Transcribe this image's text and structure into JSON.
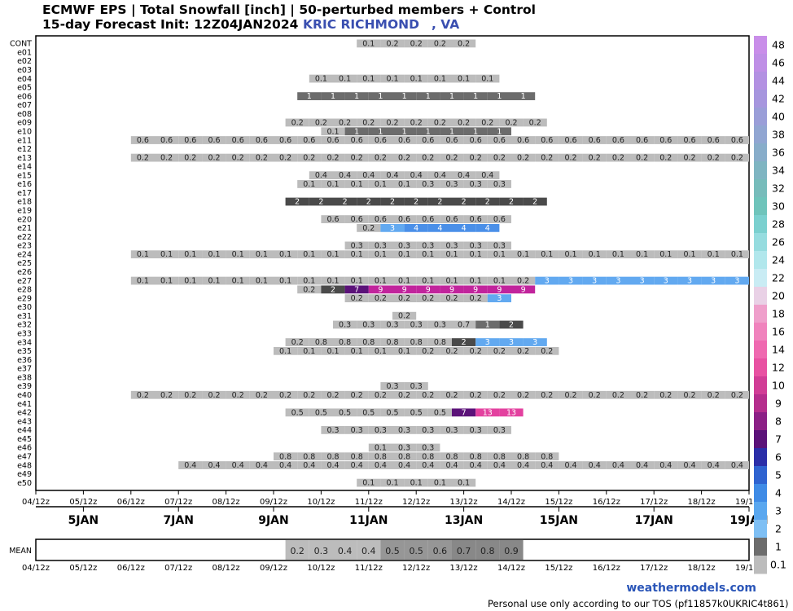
{
  "header": {
    "title_line1": "ECMWF EPS | Total Snowfall [inch] | 50-perturbed members + Control",
    "title_line2": "15-day Forecast Init: 12Z04JAN2024",
    "location": "KRIC RICHMOND",
    "location_state": ", VA"
  },
  "footer": {
    "brand": "weathermodels.com",
    "tos": "Personal use only according to our TOS (pf11857k0UKRIC4t861)"
  },
  "chart_data": {
    "type": "heatmap",
    "members": [
      "CONT",
      "e01",
      "e02",
      "e03",
      "e04",
      "e05",
      "e06",
      "e07",
      "e08",
      "e09",
      "e10",
      "e11",
      "e12",
      "e13",
      "e14",
      "e15",
      "e16",
      "e17",
      "e18",
      "e19",
      "e20",
      "e21",
      "e22",
      "e23",
      "e24",
      "e25",
      "e26",
      "e27",
      "e28",
      "e29",
      "e30",
      "e31",
      "e32",
      "e33",
      "e34",
      "e35",
      "e36",
      "e37",
      "e38",
      "e39",
      "e40",
      "e41",
      "e42",
      "e43",
      "e44",
      "e45",
      "e46",
      "e47",
      "e48",
      "e49",
      "e50"
    ],
    "time_ticks": [
      "04/12z",
      "05/12z",
      "06/12z",
      "07/12z",
      "08/12z",
      "09/12z",
      "10/12z",
      "11/12z",
      "12/12z",
      "13/12z",
      "14/12z",
      "15/12z",
      "16/12z",
      "17/12z",
      "18/12z",
      "19/12z"
    ],
    "date_labels": [
      {
        "label": "5JAN",
        "day": 5
      },
      {
        "label": "7JAN",
        "day": 7
      },
      {
        "label": "9JAN",
        "day": 9
      },
      {
        "label": "11JAN",
        "day": 11
      },
      {
        "label": "13JAN",
        "day": 13
      },
      {
        "label": "15JAN",
        "day": 15
      },
      {
        "label": "17JAN",
        "day": 17
      },
      {
        "label": "19JAN",
        "day": 19
      }
    ],
    "mean_label": "MEAN",
    "time_start_hours_from_init": 0,
    "time_end_hours_from_init": 360,
    "step_hours": 12,
    "members_data": {
      "CONT": {
        "from": 162,
        "values": [
          0.1,
          0.2,
          0.2,
          0.2,
          0.2
        ]
      },
      "e04": {
        "from": 138,
        "values": [
          0.1,
          0.1,
          0.1,
          0.1,
          0.1,
          0.1,
          0.1,
          0.1
        ]
      },
      "e06": {
        "from": 132,
        "values": [
          1,
          1,
          1,
          1,
          1,
          1,
          1,
          1,
          1,
          1
        ]
      },
      "e09": {
        "from": 126,
        "values": [
          0.2,
          0.2,
          0.2,
          0.2,
          0.2,
          0.2,
          0.2,
          0.2,
          0.2,
          0.2,
          0.2
        ]
      },
      "e10": {
        "from": 144,
        "values": [
          0.1,
          1.0,
          1.0,
          1.0,
          1.0,
          1.0,
          1.0,
          1.0
        ]
      },
      "e11": {
        "from": 48,
        "values": [
          0.6,
          0.6,
          0.6,
          0.6,
          0.6,
          0.6,
          0.6,
          0.6,
          0.6,
          0.6,
          0.6,
          0.6,
          0.6,
          0.6,
          0.6,
          0.6,
          0.6,
          0.6,
          0.6,
          0.6,
          0.6,
          0.6,
          0.6,
          0.6,
          0.6,
          0.6,
          0.6
        ]
      },
      "e13": {
        "from": 48,
        "values": [
          0.2,
          0.2,
          0.2,
          0.2,
          0.2,
          0.2,
          0.2,
          0.2,
          0.2,
          0.2,
          0.2,
          0.2,
          0.2,
          0.2,
          0.2,
          0.2,
          0.2,
          0.2,
          0.2,
          0.2,
          0.2,
          0.2,
          0.2,
          0.2,
          0.2,
          0.2,
          0.2
        ]
      },
      "e15": {
        "from": 138,
        "values": [
          0.4,
          0.4,
          0.4,
          0.4,
          0.4,
          0.4,
          0.4,
          0.4
        ]
      },
      "e16": {
        "from": 132,
        "values": [
          0.1,
          0.1,
          0.1,
          0.1,
          0.1,
          0.3,
          0.3,
          0.3,
          0.3
        ]
      },
      "e18": {
        "from": 126,
        "values": [
          2,
          2,
          2,
          2,
          2,
          2,
          2,
          2,
          2,
          2,
          2
        ]
      },
      "e20": {
        "from": 144,
        "values": [
          0.6,
          0.6,
          0.6,
          0.6,
          0.6,
          0.6,
          0.6,
          0.6
        ]
      },
      "e21": {
        "from": 162,
        "values": [
          0.2,
          3,
          4,
          4,
          4,
          4
        ]
      },
      "e23": {
        "from": 156,
        "values": [
          0.3,
          0.3,
          0.3,
          0.3,
          0.3,
          0.3,
          0.3
        ]
      },
      "e24": {
        "from": 48,
        "values": [
          0.1,
          0.1,
          0.1,
          0.1,
          0.1,
          0.1,
          0.1,
          0.1,
          0.1,
          0.1,
          0.1,
          0.1,
          0.1,
          0.1,
          0.1,
          0.1,
          0.1,
          0.1,
          0.1,
          0.1,
          0.1,
          0.1,
          0.1,
          0.1,
          0.1,
          0.1,
          0.1
        ]
      },
      "e27": {
        "from": 48,
        "values": [
          0.1,
          0.1,
          0.1,
          0.1,
          0.1,
          0.1,
          0.1,
          0.1,
          0.1,
          0.1,
          0.1,
          0.1,
          0.1,
          0.1,
          0.1,
          0.1,
          0.2,
          3,
          3,
          3,
          3,
          3,
          3,
          3,
          3,
          3,
          3
        ]
      },
      "e28": {
        "from": 132,
        "values": [
          0.2,
          2,
          7,
          9,
          9,
          9,
          9,
          9,
          9,
          9
        ]
      },
      "e29": {
        "from": 156,
        "values": [
          0.2,
          0.2,
          0.2,
          0.2,
          0.2,
          0.2,
          3
        ]
      },
      "e31": {
        "from": 180,
        "values": [
          0.2
        ]
      },
      "e32": {
        "from": 150,
        "values": [
          0.3,
          0.3,
          0.3,
          0.3,
          0.3,
          0.7,
          1,
          2
        ]
      },
      "e34": {
        "from": 126,
        "values": [
          0.2,
          0.8,
          0.8,
          0.8,
          0.8,
          0.8,
          0.8,
          2,
          3,
          3,
          3
        ]
      },
      "e35": {
        "from": 120,
        "values": [
          0.1,
          0.1,
          0.1,
          0.1,
          0.1,
          0.1,
          0.2,
          0.2,
          0.2,
          0.2,
          0.2,
          0.2
        ]
      },
      "e39": {
        "from": 174,
        "values": [
          0.3,
          0.3
        ]
      },
      "e40": {
        "from": 48,
        "values": [
          0.2,
          0.2,
          0.2,
          0.2,
          0.2,
          0.2,
          0.2,
          0.2,
          0.2,
          0.2,
          0.2,
          0.2,
          0.2,
          0.2,
          0.2,
          0.2,
          0.2,
          0.2,
          0.2,
          0.2,
          0.2,
          0.2,
          0.2,
          0.2,
          0.2,
          0.2,
          0.2
        ]
      },
      "e42": {
        "from": 126,
        "values": [
          0.5,
          0.5,
          0.5,
          0.5,
          0.5,
          0.5,
          0.5,
          7,
          13,
          13
        ]
      },
      "e44": {
        "from": 144,
        "values": [
          0.3,
          0.3,
          0.3,
          0.3,
          0.3,
          0.3,
          0.3,
          0.3
        ]
      },
      "e46": {
        "from": 168,
        "values": [
          0.1,
          0.3,
          0.3
        ]
      },
      "e47": {
        "from": 120,
        "values": [
          0.8,
          0.8,
          0.8,
          0.8,
          0.8,
          0.8,
          0.8,
          0.8,
          0.8,
          0.8,
          0.8,
          0.8
        ]
      },
      "e48": {
        "from": 72,
        "values": [
          0.4,
          0.4,
          0.4,
          0.4,
          0.4,
          0.4,
          0.4,
          0.4,
          0.4,
          0.4,
          0.4,
          0.4,
          0.4,
          0.4,
          0.4,
          0.4,
          0.4,
          0.4,
          0.4,
          0.4,
          0.4,
          0.4,
          0.4,
          0.4,
          0.4
        ]
      },
      "e50": {
        "from": 162,
        "values": [
          0.1,
          0.1,
          0.1,
          0.1,
          0.1
        ]
      }
    },
    "mean": {
      "from": 126,
      "values": [
        0.2,
        0.3,
        0.4,
        0.4,
        0.5,
        0.5,
        0.6,
        0.7,
        0.8,
        0.9
      ]
    },
    "colorbar": {
      "labels": [
        "48",
        "46",
        "44",
        "42",
        "40",
        "38",
        "36",
        "34",
        "32",
        "30",
        "28",
        "26",
        "24",
        "22",
        "20",
        "18",
        "16",
        "14",
        "12",
        "10",
        "9",
        "8",
        "7",
        "6",
        "5",
        "4",
        "3",
        "2",
        "1",
        "0.1"
      ],
      "colors": [
        "#c98ee9",
        "#bf8fe6",
        "#b391e2",
        "#a696de",
        "#9a9ed8",
        "#91a6d2",
        "#88adca",
        "#7fb5c2",
        "#77bcbb",
        "#6fc4bb",
        "#7bd0cf",
        "#96dcdf",
        "#b1e7ec",
        "#c9ecf4",
        "#e9d1e6",
        "#ef9fcb",
        "#f083bd",
        "#ef69b0",
        "#e851a2",
        "#d13d96",
        "#b52e8d",
        "#8c2086",
        "#5b1279",
        "#2b2ea8",
        "#2f63d0",
        "#3f8be6",
        "#5aa7ef",
        "#7ebff4",
        "#6c6c6c",
        "#bcbcbc"
      ]
    }
  }
}
